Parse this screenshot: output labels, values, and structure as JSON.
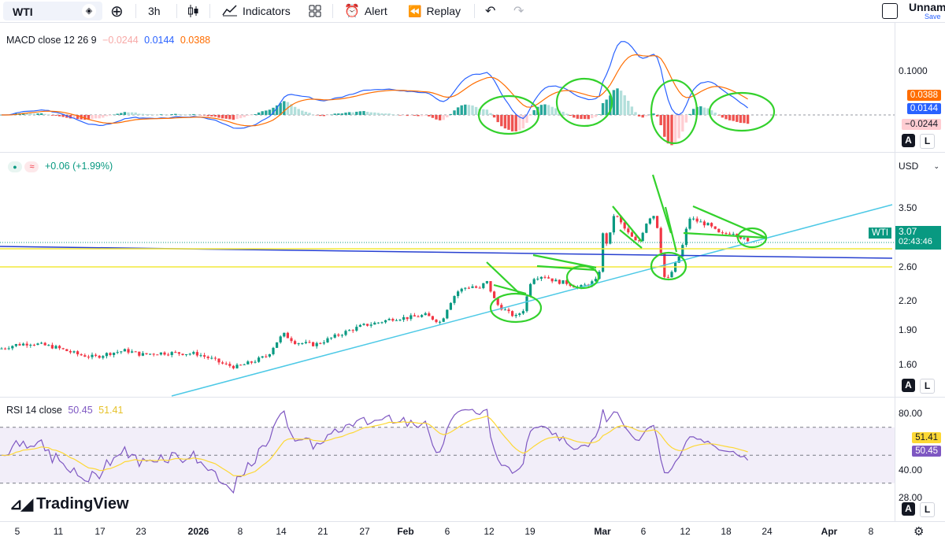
{
  "toolbar": {
    "symbol": "WTI",
    "interval": "3h",
    "indicators_label": "Indicators",
    "alert_label": "Alert",
    "replay_label": "Replay",
    "layout_name": "Unname",
    "save_label": "Save"
  },
  "macd": {
    "title": "MACD close 12 26 9",
    "hist_value": "−0.0244",
    "macd_value": "0.0144",
    "signal_value": "0.0388",
    "axis": [
      "0.1000"
    ],
    "tag_signal": "0.0388",
    "tag_macd": "0.0144",
    "tag_hist": "−0.0244",
    "colors": {
      "macd": "#2962ff",
      "signal": "#ff6d00",
      "hist_up": "#26a69a",
      "hist_down": "#ef5350"
    }
  },
  "price": {
    "change": "+0.06 (+1.99%)",
    "currency": "USD",
    "axis": [
      "3.50",
      "2.60",
      "2.20",
      "1.90",
      "1.60"
    ],
    "symbol_tag": "WTI",
    "last_price": "3.07",
    "countdown": "02:43:46",
    "colors": {
      "up": "#089981",
      "down": "#f23645"
    }
  },
  "rsi": {
    "title": "RSI 14 close",
    "rsi_value": "50.45",
    "ma_value": "51.41",
    "axis": [
      "80.00",
      "40.00",
      "28.00"
    ],
    "tag_ma": "51.41",
    "tag_rsi": "50.45",
    "colors": {
      "rsi": "#7e57c2",
      "ma": "#fdd835"
    }
  },
  "scale_buttons": {
    "auto": "A",
    "log": "L"
  },
  "branding": "TradingView",
  "xaxis": [
    "5",
    "11",
    "17",
    "23",
    "2026",
    "8",
    "14",
    "21",
    "27",
    "Feb",
    "6",
    "12",
    "19",
    "Mar",
    "6",
    "12",
    "18",
    "24",
    "Apr",
    "8"
  ],
  "chart_data": {
    "type": "candlestick",
    "symbol": "WTI",
    "interval": "3h",
    "price_path": [
      [
        0,
        1.78
      ],
      [
        20,
        1.83
      ],
      [
        40,
        1.85
      ],
      [
        70,
        1.8
      ],
      [
        100,
        1.71
      ],
      [
        120,
        1.68
      ],
      [
        140,
        1.73
      ],
      [
        160,
        1.76
      ],
      [
        180,
        1.71
      ],
      [
        200,
        1.73
      ],
      [
        220,
        1.73
      ],
      [
        250,
        1.72
      ],
      [
        268,
        1.66
      ],
      [
        285,
        1.59
      ],
      [
        300,
        1.56
      ],
      [
        320,
        1.62
      ],
      [
        340,
        1.7
      ],
      [
        350,
        1.85
      ],
      [
        360,
        1.96
      ],
      [
        375,
        1.86
      ],
      [
        400,
        1.83
      ],
      [
        420,
        1.91
      ],
      [
        440,
        1.99
      ],
      [
        460,
        2.06
      ],
      [
        480,
        2.1
      ],
      [
        500,
        2.15
      ],
      [
        520,
        2.16
      ],
      [
        540,
        2.19
      ],
      [
        560,
        2.1
      ],
      [
        570,
        2.32
      ],
      [
        580,
        2.47
      ],
      [
        590,
        2.52
      ],
      [
        600,
        2.54
      ],
      [
        610,
        2.5
      ],
      [
        617,
        2.62
      ],
      [
        630,
        2.33
      ],
      [
        645,
        2.22
      ],
      [
        655,
        2.17
      ],
      [
        665,
        2.26
      ],
      [
        675,
        2.64
      ],
      [
        690,
        2.67
      ],
      [
        705,
        2.6
      ],
      [
        720,
        2.58
      ],
      [
        735,
        2.52
      ],
      [
        750,
        2.58
      ],
      [
        760,
        2.62
      ],
      [
        765,
        3.18
      ],
      [
        772,
        3.03
      ],
      [
        780,
        3.43
      ],
      [
        795,
        3.21
      ],
      [
        810,
        3.05
      ],
      [
        820,
        3.3
      ],
      [
        829,
        3.43
      ],
      [
        835,
        3.25
      ],
      [
        845,
        2.57
      ],
      [
        855,
        2.75
      ],
      [
        865,
        2.96
      ],
      [
        875,
        3.37
      ],
      [
        885,
        3.33
      ],
      [
        900,
        3.28
      ],
      [
        915,
        3.16
      ],
      [
        930,
        3.2
      ],
      [
        940,
        3.14
      ],
      [
        950,
        3.07
      ]
    ],
    "price_range": [
      1.45,
      3.75
    ],
    "macd_range": [
      -0.05,
      0.17
    ],
    "rsi_range": [
      20,
      90
    ],
    "rsi_bands": [
      70,
      50,
      30
    ],
    "annotations": [
      "ascending trendline",
      "horizontal support lines",
      "triangle patterns",
      "circled MACD histogram troughs"
    ]
  }
}
